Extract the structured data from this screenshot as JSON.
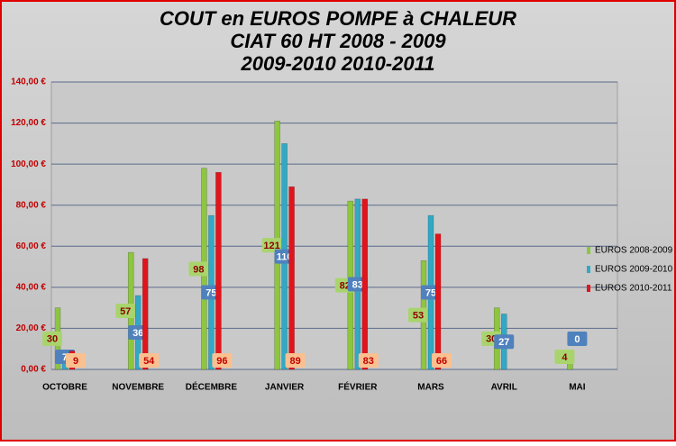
{
  "chart_data": {
    "type": "bar",
    "title": [
      "COUT  en  EUROS  POMPE à CHALEUR",
      "CIAT 60 HT      2008 - 2009",
      "2009-2010      2010-2011"
    ],
    "categories": [
      "OCTOBRE",
      "NOVEMBRE",
      "DÉCEMBRE",
      "JANVIER",
      "FÉVRIER",
      "MARS",
      "AVRIL",
      "MAI"
    ],
    "series": [
      {
        "name": "EUROS 2008-2009",
        "color": "#8dc63f",
        "values": [
          30,
          57,
          98,
          121,
          82,
          53,
          30,
          4
        ]
      },
      {
        "name": "EUROS 2009-2010",
        "color": "#31a9c4",
        "values": [
          7,
          36,
          75,
          110,
          83,
          75,
          27,
          0
        ]
      },
      {
        "name": "EUROS 2010-2011",
        "color": "#e0141c",
        "values": [
          9,
          54,
          96,
          89,
          83,
          66,
          null,
          null
        ]
      }
    ],
    "ylim": [
      0,
      140
    ],
    "yticks": [
      {
        "value": 0,
        "label": "0,00 €"
      },
      {
        "value": 20,
        "label": "20,00 €"
      },
      {
        "value": 40,
        "label": "40,00 €"
      },
      {
        "value": 60,
        "label": "60,00 €"
      },
      {
        "value": 80,
        "label": "80,00 €"
      },
      {
        "value": 100,
        "label": "100,00 €"
      },
      {
        "value": 120,
        "label": "120,00 €"
      },
      {
        "value": 140,
        "label": "140,00 €"
      }
    ],
    "grid": true,
    "legend": "right"
  }
}
